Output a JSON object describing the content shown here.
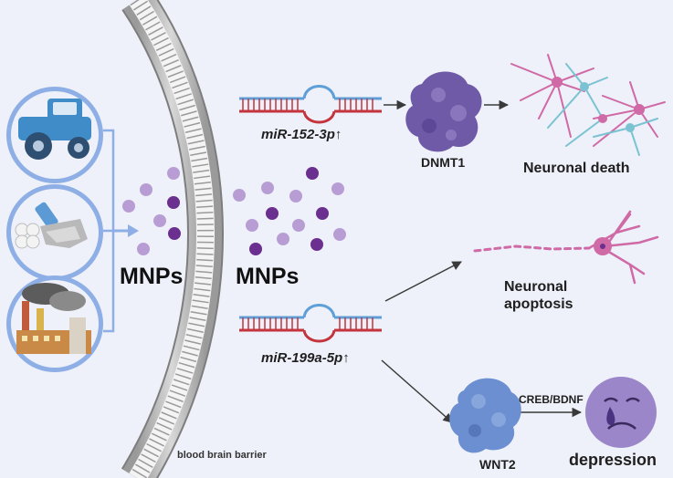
{
  "labels": {
    "mnps_left": "MNPs",
    "mnps_right": "MNPs",
    "mirna_top": "miR-152-3p↑",
    "mirna_bottom": "miR-199a-5p↑",
    "target_top": "DNMT1",
    "target_bottom": "WNT2",
    "outcome_death": "Neuronal death",
    "outcome_apoptosis": "Neuronal apoptosis",
    "pathway": "CREB/BDNF",
    "outcome_depression": "depression",
    "barrier": "blood brain barrier"
  },
  "icons": {
    "sources": [
      "tractor-icon",
      "plastic-waste-icon",
      "factory-icon"
    ],
    "particles": "microplastic-particles-icon",
    "rna": "rna-hairpin-icon",
    "protein": "protein-icon",
    "neuron": "neuron-icon",
    "face": "sad-face-icon"
  },
  "colors": {
    "background": "#eef1f9",
    "source_circle": "#8eaee6",
    "tractor": "#3f8cc9",
    "particle_light": "#b89dd4",
    "particle_dark": "#6a2f8f",
    "dnmt1": "#6f5aa8",
    "wnt2": "#6b8fd0",
    "neuron_pink": "#d06aa7",
    "neuron_teal": "#7bc3d3",
    "rna_red": "#c4343d",
    "rna_blue": "#5f9fd8",
    "face": "#9a86c9"
  }
}
